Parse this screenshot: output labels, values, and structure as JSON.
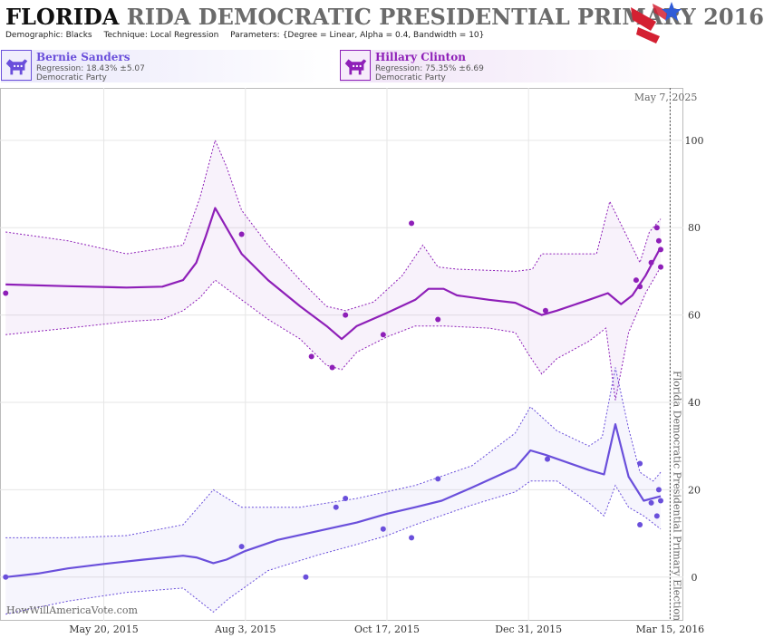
{
  "header": {
    "title_state": "FLORIDA",
    "title_rest": "RIDA DEMOCRATIC PRESIDENTIAL PRIMARY 2016",
    "demographic_label": "Demographic:",
    "demographic_value": "Blacks",
    "technique_label": "Technique:",
    "technique_value": "Local Regression",
    "parameters_label": "Parameters:",
    "parameters_value": "{Degree = Linear, Alpha = 0.4, Bandwidth = 10}"
  },
  "candidates": [
    {
      "name": "Bernie Sanders",
      "regression": "Regression: 18.43% ±5.07",
      "party": "Democratic Party",
      "color": "#6a4fdb"
    },
    {
      "name": "Hillary Clinton",
      "regression": "Regression: 75.35% ±6.69",
      "party": "Democratic Party",
      "color": "#8e1fb8"
    }
  ],
  "watermark": "HowWillAmericaVote.com",
  "colors": {
    "sanders": "#6a4fdb",
    "clinton": "#8e1fb8",
    "logo_red": "#d42032",
    "logo_blue": "#2f5bd8"
  },
  "chart_data": {
    "type": "line",
    "date_label": "May 7, 2025",
    "event_label": "Florida Democratic Presidential Primary Election",
    "event_date": "2016-03-15",
    "x_range": [
      "2015-03-26",
      "2016-03-22"
    ],
    "ylim": [
      -10,
      112
    ],
    "y_ticks": [
      0,
      20,
      40,
      60,
      80,
      100
    ],
    "x_ticks": [
      {
        "date": "2015-05-20",
        "label": "May 20, 2015"
      },
      {
        "date": "2015-08-03",
        "label": "Aug 3, 2015"
      },
      {
        "date": "2015-10-17",
        "label": "Oct 17, 2015"
      },
      {
        "date": "2015-12-31",
        "label": "Dec 31, 2015"
      },
      {
        "date": "2016-03-15",
        "label": "Mar 15, 2016"
      }
    ],
    "grid": true,
    "series": [
      {
        "name": "Hillary Clinton",
        "color": "#8e1fb8",
        "points": [
          [
            "2015-03-29",
            65
          ],
          [
            "2015-08-01",
            78.5
          ],
          [
            "2015-09-07",
            50.5
          ],
          [
            "2015-09-18",
            48
          ],
          [
            "2015-09-25",
            60
          ],
          [
            "2015-10-15",
            55.5
          ],
          [
            "2015-10-30",
            81
          ],
          [
            "2015-11-13",
            59
          ],
          [
            "2016-01-09",
            61
          ],
          [
            "2016-02-26",
            68
          ],
          [
            "2016-02-28",
            66.5
          ],
          [
            "2016-03-05",
            72
          ],
          [
            "2016-03-08",
            80
          ],
          [
            "2016-03-09",
            77
          ],
          [
            "2016-03-10",
            75
          ],
          [
            "2016-03-10",
            71
          ]
        ],
        "trend": [
          [
            "2015-03-29",
            67
          ],
          [
            "2015-05-01",
            66.6
          ],
          [
            "2015-06-01",
            66.3
          ],
          [
            "2015-06-20",
            66.5
          ],
          [
            "2015-07-01",
            68
          ],
          [
            "2015-07-08",
            72
          ],
          [
            "2015-07-13",
            78
          ],
          [
            "2015-07-18",
            84.5
          ],
          [
            "2015-07-24",
            80
          ],
          [
            "2015-08-01",
            74
          ],
          [
            "2015-08-15",
            68
          ],
          [
            "2015-09-01",
            62
          ],
          [
            "2015-09-15",
            57.5
          ],
          [
            "2015-09-23",
            54.5
          ],
          [
            "2015-10-01",
            57.5
          ],
          [
            "2015-10-17",
            60.5
          ],
          [
            "2015-11-01",
            63.5
          ],
          [
            "2015-11-08",
            66
          ],
          [
            "2015-11-16",
            66
          ],
          [
            "2015-11-23",
            64.5
          ],
          [
            "2015-12-10",
            63.5
          ],
          [
            "2015-12-24",
            62.8
          ],
          [
            "2016-01-02",
            61
          ],
          [
            "2016-01-07",
            60
          ],
          [
            "2016-01-15",
            61
          ],
          [
            "2016-02-01",
            63.5
          ],
          [
            "2016-02-11",
            65
          ],
          [
            "2016-02-18",
            62.5
          ],
          [
            "2016-02-24",
            64.5
          ],
          [
            "2016-03-02",
            69
          ],
          [
            "2016-03-10",
            75.5
          ]
        ],
        "upper": [
          [
            "2015-03-29",
            79
          ],
          [
            "2015-05-01",
            77
          ],
          [
            "2015-06-01",
            74
          ],
          [
            "2015-07-01",
            76
          ],
          [
            "2015-07-10",
            87
          ],
          [
            "2015-07-18",
            100
          ],
          [
            "2015-07-24",
            94
          ],
          [
            "2015-08-01",
            84
          ],
          [
            "2015-08-15",
            76
          ],
          [
            "2015-09-01",
            68
          ],
          [
            "2015-09-15",
            62
          ],
          [
            "2015-09-25",
            61
          ],
          [
            "2015-10-10",
            63
          ],
          [
            "2015-10-25",
            69
          ],
          [
            "2015-11-05",
            76
          ],
          [
            "2015-11-13",
            71
          ],
          [
            "2015-11-23",
            70.5
          ],
          [
            "2015-12-24",
            70
          ],
          [
            "2016-01-02",
            70.5
          ],
          [
            "2016-01-07",
            74
          ],
          [
            "2016-01-15",
            74
          ],
          [
            "2016-02-05",
            74
          ],
          [
            "2016-02-12",
            86
          ],
          [
            "2016-02-20",
            79
          ],
          [
            "2016-02-28",
            72
          ],
          [
            "2016-03-04",
            79
          ],
          [
            "2016-03-10",
            82
          ]
        ],
        "lower": [
          [
            "2015-03-29",
            55.5
          ],
          [
            "2015-05-01",
            57
          ],
          [
            "2015-06-01",
            58.5
          ],
          [
            "2015-06-20",
            59
          ],
          [
            "2015-07-01",
            61
          ],
          [
            "2015-07-10",
            64
          ],
          [
            "2015-07-18",
            68
          ],
          [
            "2015-08-01",
            63.5
          ],
          [
            "2015-08-15",
            59
          ],
          [
            "2015-09-01",
            54.5
          ],
          [
            "2015-09-15",
            48.5
          ],
          [
            "2015-09-23",
            47.5
          ],
          [
            "2015-10-01",
            51.5
          ],
          [
            "2015-10-17",
            55
          ],
          [
            "2015-11-01",
            57.5
          ],
          [
            "2015-11-16",
            57.5
          ],
          [
            "2015-12-10",
            57
          ],
          [
            "2015-12-24",
            56
          ],
          [
            "2015-12-31",
            51
          ],
          [
            "2016-01-07",
            46.5
          ],
          [
            "2016-01-15",
            50
          ],
          [
            "2016-02-01",
            54
          ],
          [
            "2016-02-10",
            57
          ],
          [
            "2016-02-15",
            40.5
          ],
          [
            "2016-02-22",
            56
          ],
          [
            "2016-03-02",
            65
          ],
          [
            "2016-03-10",
            71
          ]
        ]
      },
      {
        "name": "Bernie Sanders",
        "color": "#6a4fdb",
        "points": [
          [
            "2015-03-29",
            0
          ],
          [
            "2015-08-01",
            7
          ],
          [
            "2015-09-04",
            0
          ],
          [
            "2015-09-20",
            16
          ],
          [
            "2015-09-25",
            18
          ],
          [
            "2015-10-15",
            11
          ],
          [
            "2015-10-30",
            9
          ],
          [
            "2015-11-13",
            22.5
          ],
          [
            "2016-01-10",
            27
          ],
          [
            "2016-02-28",
            26
          ],
          [
            "2016-02-28",
            12
          ],
          [
            "2016-03-05",
            17
          ],
          [
            "2016-03-08",
            14
          ],
          [
            "2016-03-09",
            20
          ],
          [
            "2016-03-10",
            17.5
          ]
        ],
        "trend": [
          [
            "2015-03-29",
            0
          ],
          [
            "2015-04-15",
            0.8
          ],
          [
            "2015-05-01",
            2
          ],
          [
            "2015-05-20",
            3
          ],
          [
            "2015-06-10",
            4
          ],
          [
            "2015-07-01",
            4.9
          ],
          [
            "2015-07-08",
            4.5
          ],
          [
            "2015-07-17",
            3.2
          ],
          [
            "2015-07-24",
            4
          ],
          [
            "2015-08-03",
            6
          ],
          [
            "2015-08-20",
            8.5
          ],
          [
            "2015-09-10",
            10.5
          ],
          [
            "2015-10-01",
            12.5
          ],
          [
            "2015-10-17",
            14.5
          ],
          [
            "2015-11-01",
            16
          ],
          [
            "2015-11-15",
            17.5
          ],
          [
            "2015-12-01",
            20.5
          ],
          [
            "2015-12-24",
            25
          ],
          [
            "2016-01-01",
            29
          ],
          [
            "2016-01-09",
            28
          ],
          [
            "2016-02-01",
            24.5
          ],
          [
            "2016-02-09",
            23.5
          ],
          [
            "2016-02-15",
            35
          ],
          [
            "2016-02-22",
            23
          ],
          [
            "2016-03-01",
            17.5
          ],
          [
            "2016-03-10",
            18.5
          ]
        ],
        "upper": [
          [
            "2015-03-29",
            9
          ],
          [
            "2015-05-01",
            9
          ],
          [
            "2015-06-01",
            9.5
          ],
          [
            "2015-07-01",
            12
          ],
          [
            "2015-07-17",
            20
          ],
          [
            "2015-08-01",
            16
          ],
          [
            "2015-09-01",
            16
          ],
          [
            "2015-10-01",
            18
          ],
          [
            "2015-11-01",
            21
          ],
          [
            "2015-12-01",
            25.5
          ],
          [
            "2015-12-24",
            33
          ],
          [
            "2016-01-01",
            39
          ],
          [
            "2016-01-15",
            33.5
          ],
          [
            "2016-02-01",
            30
          ],
          [
            "2016-02-08",
            32
          ],
          [
            "2016-02-15",
            48
          ],
          [
            "2016-02-22",
            34
          ],
          [
            "2016-02-28",
            24
          ],
          [
            "2016-03-06",
            22
          ],
          [
            "2016-03-10",
            24
          ]
        ],
        "lower": [
          [
            "2015-03-29",
            -8.5
          ],
          [
            "2015-05-01",
            -5.5
          ],
          [
            "2015-06-01",
            -3.5
          ],
          [
            "2015-07-01",
            -2.5
          ],
          [
            "2015-07-17",
            -8
          ],
          [
            "2015-07-25",
            -5
          ],
          [
            "2015-08-15",
            1.5
          ],
          [
            "2015-09-10",
            5
          ],
          [
            "2015-10-01",
            7.5
          ],
          [
            "2015-10-17",
            9.5
          ],
          [
            "2015-11-01",
            12
          ],
          [
            "2015-12-01",
            16.5
          ],
          [
            "2015-12-24",
            19.5
          ],
          [
            "2016-01-01",
            22
          ],
          [
            "2016-01-15",
            22
          ],
          [
            "2016-02-01",
            17
          ],
          [
            "2016-02-09",
            14
          ],
          [
            "2016-02-15",
            21
          ],
          [
            "2016-02-22",
            16
          ],
          [
            "2016-03-01",
            14
          ],
          [
            "2016-03-10",
            11
          ]
        ]
      }
    ]
  }
}
